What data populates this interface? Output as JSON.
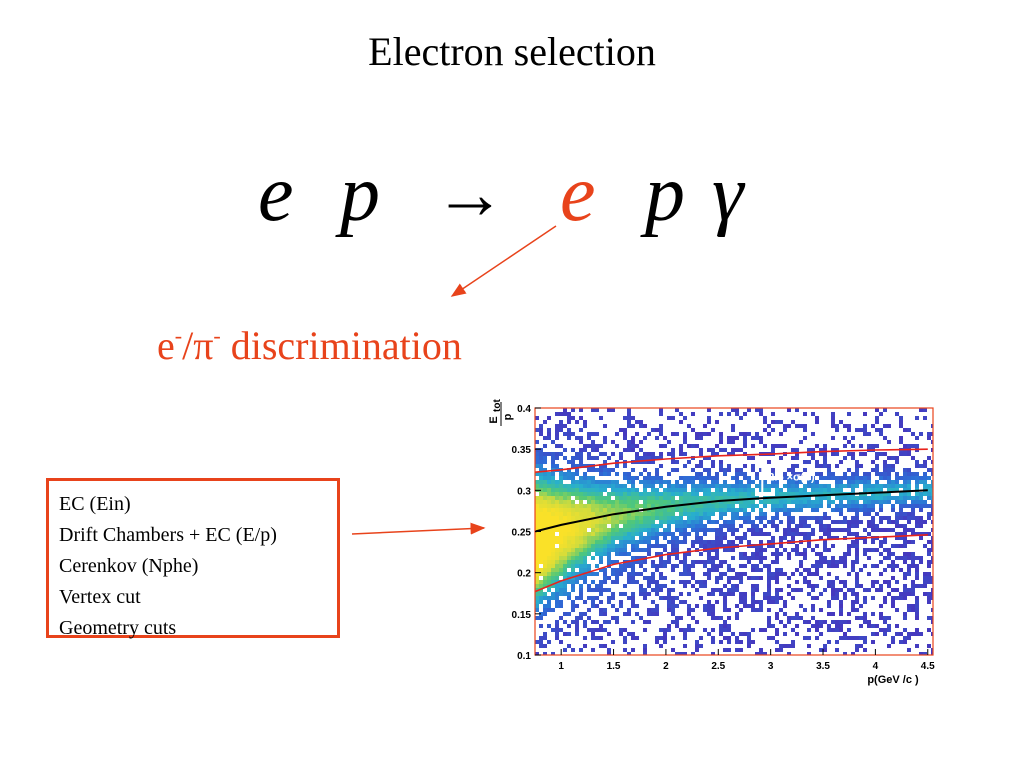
{
  "slide": {
    "title": "Electron selection",
    "reaction": {
      "e1": "e",
      "p1": "p",
      "arrow": "→",
      "e2": "e",
      "p2": "p",
      "gamma": "γ"
    },
    "discrimination": {
      "e": "e",
      "e_sup": "-",
      "slash": "/",
      "pi": "π",
      "pi_sup": "-",
      "rest": " discrimination"
    },
    "cuts": [
      "EC (Ein)",
      "Drift Chambers + EC (E/p)",
      "Cerenkov (Nphe)",
      "Vertex cut",
      "Geometry cuts"
    ],
    "accent_color": "#e8431b"
  },
  "chart_data": {
    "type": "heatmap",
    "title": "",
    "xlabel": "p(GeV /c )",
    "ylabel": "E_tot / p",
    "xlim": [
      0.75,
      4.55
    ],
    "ylim": [
      0.1,
      0.4
    ],
    "x_ticks": [
      "1",
      "1.5",
      "2",
      "2.5",
      "3",
      "3.5",
      "4",
      "4.5"
    ],
    "y_ticks": [
      "0.1",
      "0.15",
      "0.2",
      "0.25",
      "0.3",
      "0.35",
      "0.4"
    ],
    "annotation": "2.5 ×σ(p)",
    "mean_curve": {
      "x": [
        0.75,
        1.0,
        1.5,
        2.0,
        2.5,
        3.0,
        3.5,
        4.0,
        4.5
      ],
      "y": [
        0.25,
        0.258,
        0.271,
        0.28,
        0.287,
        0.291,
        0.294,
        0.297,
        0.3
      ]
    },
    "upper_cut": {
      "x": [
        0.75,
        1.0,
        1.5,
        2.0,
        2.5,
        3.0,
        3.5,
        4.0,
        4.5
      ],
      "y": [
        0.322,
        0.325,
        0.333,
        0.338,
        0.342,
        0.344,
        0.347,
        0.349,
        0.35
      ]
    },
    "lower_cut": {
      "x": [
        0.75,
        1.0,
        1.5,
        2.0,
        2.5,
        3.0,
        3.5,
        4.0,
        4.5
      ],
      "y": [
        0.177,
        0.19,
        0.21,
        0.222,
        0.23,
        0.235,
        0.24,
        0.243,
        0.246
      ]
    },
    "colors": {
      "background": "#ffffff",
      "low_density": "#4b3fc2",
      "high_density": "#f7e52a",
      "mean_curve": "#000000",
      "cut_lines": "#e8231b",
      "frame": "#e8431b"
    }
  }
}
